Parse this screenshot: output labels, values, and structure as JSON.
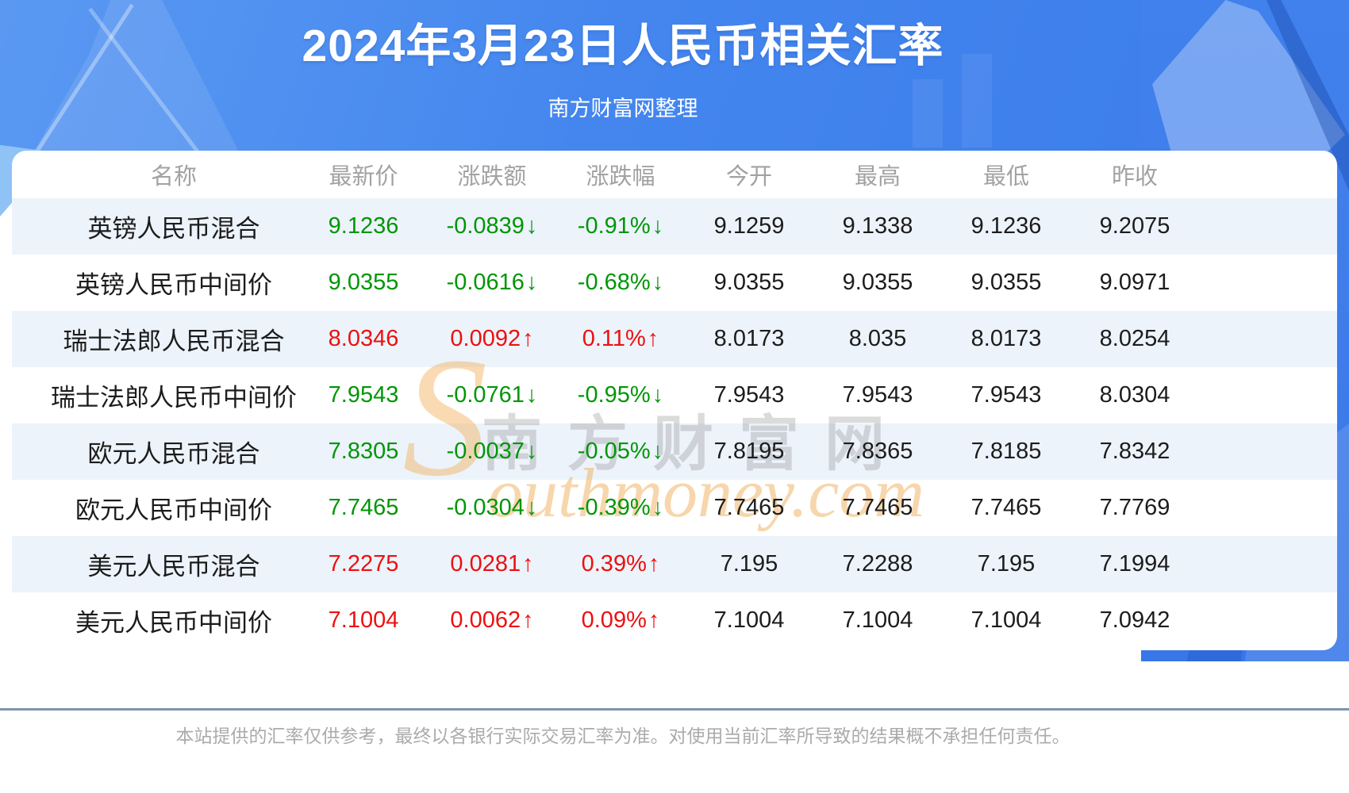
{
  "banner": {
    "title": "2024年3月23日人民币相关汇率",
    "subtitle": "南方财富网整理"
  },
  "watermark": {
    "initial": "S",
    "cn": "南方财富网",
    "en": "outhmoney.com"
  },
  "table": {
    "columns": [
      "名称",
      "最新价",
      "涨跌额",
      "涨跌幅",
      "今开",
      "最高",
      "最低",
      "昨收"
    ],
    "rows": [
      {
        "name": "英镑人民币混合",
        "latest": "9.1236",
        "change": "-0.0839",
        "change_pct": "-0.91%",
        "arrow": "↓",
        "trend": "down",
        "open": "9.1259",
        "high": "9.1338",
        "low": "9.1236",
        "prev_close": "9.2075"
      },
      {
        "name": "英镑人民币中间价",
        "latest": "9.0355",
        "change": "-0.0616",
        "change_pct": "-0.68%",
        "arrow": "↓",
        "trend": "down",
        "open": "9.0355",
        "high": "9.0355",
        "low": "9.0355",
        "prev_close": "9.0971"
      },
      {
        "name": "瑞士法郎人民币混合",
        "latest": "8.0346",
        "change": "0.0092",
        "change_pct": "0.11%",
        "arrow": "↑",
        "trend": "up",
        "open": "8.0173",
        "high": "8.035",
        "low": "8.0173",
        "prev_close": "8.0254"
      },
      {
        "name": "瑞士法郎人民币中间价",
        "latest": "7.9543",
        "change": "-0.0761",
        "change_pct": "-0.95%",
        "arrow": "↓",
        "trend": "down",
        "open": "7.9543",
        "high": "7.9543",
        "low": "7.9543",
        "prev_close": "8.0304"
      },
      {
        "name": "欧元人民币混合",
        "latest": "7.8305",
        "change": "-0.0037",
        "change_pct": "-0.05%",
        "arrow": "↓",
        "trend": "down",
        "open": "7.8195",
        "high": "7.8365",
        "low": "7.8185",
        "prev_close": "7.8342"
      },
      {
        "name": "欧元人民币中间价",
        "latest": "7.7465",
        "change": "-0.0304",
        "change_pct": "-0.39%",
        "arrow": "↓",
        "trend": "down",
        "open": "7.7465",
        "high": "7.7465",
        "low": "7.7465",
        "prev_close": "7.7769"
      },
      {
        "name": "美元人民币混合",
        "latest": "7.2275",
        "change": "0.0281",
        "change_pct": "0.39%",
        "arrow": "↑",
        "trend": "up",
        "open": "7.195",
        "high": "7.2288",
        "low": "7.195",
        "prev_close": "7.1994"
      },
      {
        "name": "美元人民币中间价",
        "latest": "7.1004",
        "change": "0.0062",
        "change_pct": "0.09%",
        "arrow": "↑",
        "trend": "up",
        "open": "7.1004",
        "high": "7.1004",
        "low": "7.1004",
        "prev_close": "7.0942"
      }
    ]
  },
  "footer": {
    "disclaimer": "本站提供的汇率仅供参考，最终以各银行实际交易汇率为准。对使用当前汇率所导致的结果概不承担任何责任。"
  },
  "colors": {
    "up": "#ed1010",
    "down": "#009606",
    "stripe": "#ecf3fb",
    "divider": "#7e93a9"
  }
}
